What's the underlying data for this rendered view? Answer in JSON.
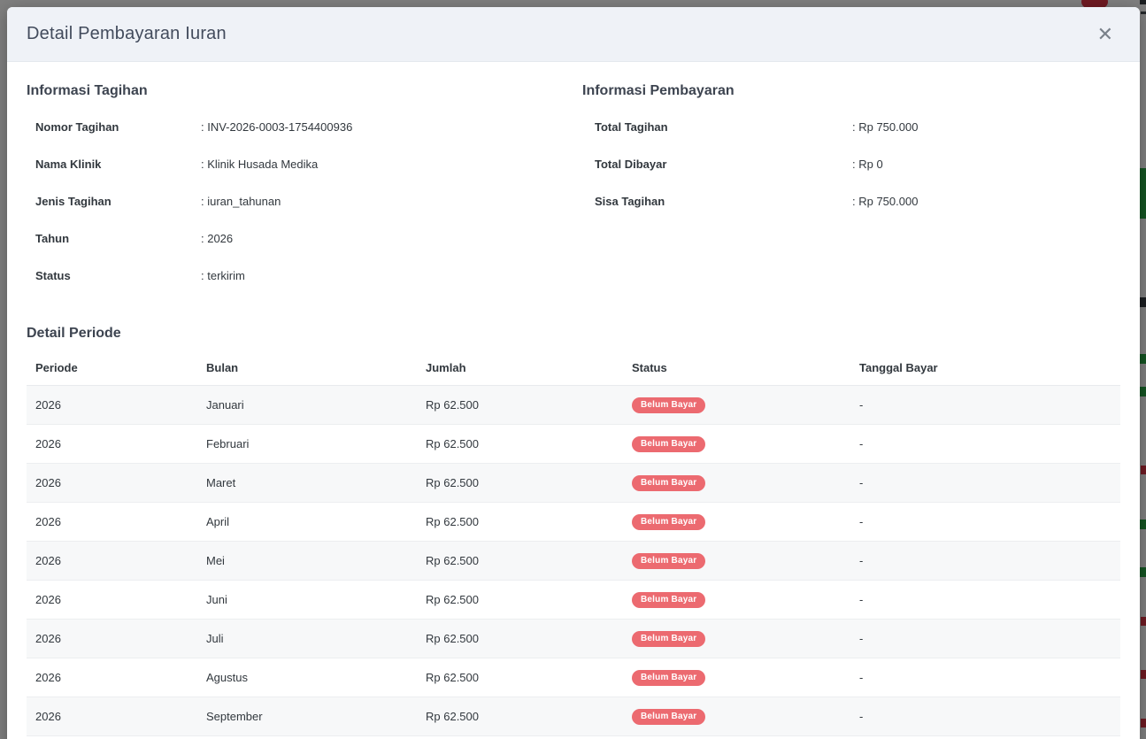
{
  "colors": {
    "badge-bg": "#ec6a70",
    "header-bg": "#eff2f7",
    "title-color": "#424b5c",
    "text-color": "#32383e",
    "frag-green": "#28a745",
    "frag-red": "#dc3545"
  },
  "modal": {
    "title": "Detail Pembayaran Iuran",
    "close_icon": "✕"
  },
  "billing_info": {
    "heading": "Informasi Tagihan",
    "rows": [
      {
        "label": "Nomor Tagihan",
        "value": ": INV-2026-0003-1754400936"
      },
      {
        "label": "Nama Klinik",
        "value": ": Klinik Husada Medika"
      },
      {
        "label": "Jenis Tagihan",
        "value": ": iuran_tahunan"
      },
      {
        "label": "Tahun",
        "value": ": 2026"
      },
      {
        "label": "Status",
        "value": ": terkirim"
      }
    ]
  },
  "payment_info": {
    "heading": "Informasi Pembayaran",
    "rows": [
      {
        "label": "Total Tagihan",
        "value": ": Rp 750.000"
      },
      {
        "label": "Total Dibayar",
        "value": ": Rp 0"
      },
      {
        "label": "Sisa Tagihan",
        "value": ": Rp 750.000"
      }
    ]
  },
  "period_detail": {
    "heading": "Detail Periode",
    "columns": [
      "Periode",
      "Bulan",
      "Jumlah",
      "Status",
      "Tanggal Bayar"
    ],
    "rows": [
      {
        "periode": "2026",
        "bulan": "Januari",
        "jumlah": "Rp 62.500",
        "status": "Belum Bayar",
        "tanggal_bayar": "-"
      },
      {
        "periode": "2026",
        "bulan": "Februari",
        "jumlah": "Rp 62.500",
        "status": "Belum Bayar",
        "tanggal_bayar": "-"
      },
      {
        "periode": "2026",
        "bulan": "Maret",
        "jumlah": "Rp 62.500",
        "status": "Belum Bayar",
        "tanggal_bayar": "-"
      },
      {
        "periode": "2026",
        "bulan": "April",
        "jumlah": "Rp 62.500",
        "status": "Belum Bayar",
        "tanggal_bayar": "-"
      },
      {
        "periode": "2026",
        "bulan": "Mei",
        "jumlah": "Rp 62.500",
        "status": "Belum Bayar",
        "tanggal_bayar": "-"
      },
      {
        "periode": "2026",
        "bulan": "Juni",
        "jumlah": "Rp 62.500",
        "status": "Belum Bayar",
        "tanggal_bayar": "-"
      },
      {
        "periode": "2026",
        "bulan": "Juli",
        "jumlah": "Rp 62.500",
        "status": "Belum Bayar",
        "tanggal_bayar": "-"
      },
      {
        "periode": "2026",
        "bulan": "Agustus",
        "jumlah": "Rp 62.500",
        "status": "Belum Bayar",
        "tanggal_bayar": "-"
      },
      {
        "periode": "2026",
        "bulan": "September",
        "jumlah": "Rp 62.500",
        "status": "Belum Bayar",
        "tanggal_bayar": "-"
      }
    ]
  }
}
